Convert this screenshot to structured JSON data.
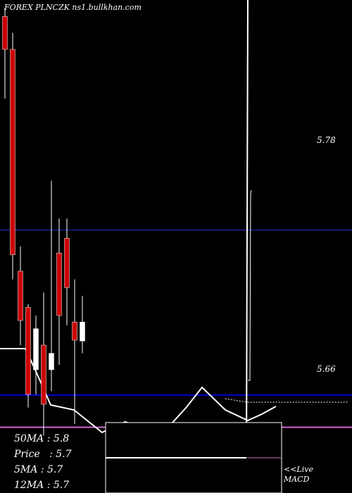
{
  "header": {
    "symbol": "FOREX  PLNCZK",
    "site": "ns1.bullkhan.com"
  },
  "price_labels": {
    "upper": "5.78",
    "lower": "5.66"
  },
  "stats": {
    "ma50": "50MA : 5.8",
    "price": "Price   : 5.7",
    "ma5": "5MA : 5.7",
    "ma12": "12MA : 5.7"
  },
  "live_note": {
    "line1": "<<Live",
    "line2": "MACD"
  },
  "colors": {
    "background": "#000000",
    "bull": "#ffffff",
    "bear": "#cc0000",
    "upper_level": "#1a1a7a",
    "lower_level": "#cc66cc",
    "blue_line": "#0000cc",
    "indicator": "#ffffff"
  },
  "chart_data": {
    "type": "candlestick",
    "ylim": [
      5.62,
      5.92
    ],
    "levels": [
      5.78,
      5.66
    ],
    "candles": [
      {
        "open": 5.91,
        "close": 5.89,
        "high": 5.915,
        "low": 5.86
      },
      {
        "open": 5.89,
        "close": 5.765,
        "high": 5.9,
        "low": 5.75
      },
      {
        "open": 5.755,
        "close": 5.725,
        "high": 5.77,
        "low": 5.71
      },
      {
        "open": 5.733,
        "close": 5.68,
        "high": 5.735,
        "low": 5.672
      },
      {
        "open": 5.695,
        "close": 5.72,
        "high": 5.728,
        "low": 5.68
      },
      {
        "open": 5.71,
        "close": 5.674,
        "high": 5.742,
        "low": 5.655
      },
      {
        "open": 5.695,
        "close": 5.705,
        "high": 5.81,
        "low": 5.682
      },
      {
        "open": 5.766,
        "close": 5.728,
        "high": 5.787,
        "low": 5.698
      },
      {
        "open": 5.775,
        "close": 5.745,
        "high": 5.787,
        "low": 5.722
      },
      {
        "open": 5.724,
        "close": 5.713,
        "high": 5.75,
        "low": 5.662
      },
      {
        "open": 5.7125,
        "close": 5.724,
        "high": 5.74,
        "low": 5.705
      }
    ]
  }
}
